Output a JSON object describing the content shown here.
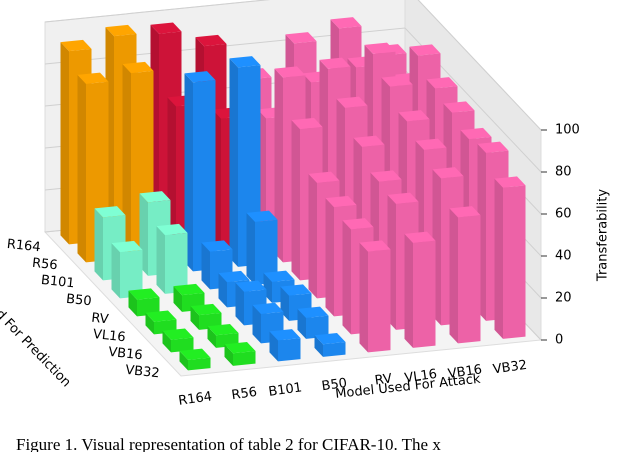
{
  "chart_data": {
    "type": "bar3d",
    "caption": "Figure 1. Visual representation of table 2 for CIFAR-10. The x",
    "xlabel": "Model Used For Attack",
    "ylabel": "Model Used For Prediction",
    "zlabel": "Transferability",
    "x_categories": [
      "R164",
      "R56",
      "B101",
      "B50",
      "RV",
      "VL16",
      "VB16",
      "VB32"
    ],
    "y_categories": [
      "R164",
      "R56",
      "B101",
      "B50",
      "RV",
      "VL16",
      "VB16",
      "VB32"
    ],
    "zlim": [
      0,
      100
    ],
    "zticks": [
      0,
      20,
      40,
      60,
      80,
      100
    ],
    "grid": true,
    "values": [
      [
        92,
        85,
        30,
        22,
        8,
        6,
        6,
        5
      ],
      [
        97,
        88,
        35,
        28,
        8,
        7,
        6,
        6
      ],
      [
        96,
        70,
        90,
        18,
        12,
        16,
        14,
        10
      ],
      [
        88,
        62,
        95,
        30,
        10,
        12,
        10,
        6
      ],
      [
        70,
        60,
        88,
        72,
        55,
        52,
        50,
        48
      ],
      [
        85,
        75,
        90,
        80,
        70,
        62,
        60,
        50
      ],
      [
        90,
        80,
        95,
        88,
        80,
        75,
        70,
        60
      ],
      [
        75,
        70,
        92,
        85,
        82,
        78,
        80,
        72
      ]
    ],
    "colors": [
      [
        "#ffa500",
        "#ffa500",
        "#7fffd4",
        "#7fffd4",
        "#22ee22",
        "#22ee22",
        "#22ee22",
        "#22ee22"
      ],
      [
        "#ffa500",
        "#ffa500",
        "#7fffd4",
        "#7fffd4",
        "#22ee22",
        "#22ee22",
        "#22ee22",
        "#22ee22"
      ],
      [
        "#dc143c",
        "#dc143c",
        "#1e90ff",
        "#1e90ff",
        "#1e90ff",
        "#1e90ff",
        "#1e90ff",
        "#1e90ff"
      ],
      [
        "#dc143c",
        "#dc143c",
        "#1e90ff",
        "#1e90ff",
        "#1e90ff",
        "#1e90ff",
        "#1e90ff",
        "#1e90ff"
      ],
      [
        "#ff69b4",
        "#ff69b4",
        "#ff69b4",
        "#ff69b4",
        "#ff69b4",
        "#ff69b4",
        "#ff69b4",
        "#ff69b4"
      ],
      [
        "#ff69b4",
        "#ff69b4",
        "#ff69b4",
        "#ff69b4",
        "#ff69b4",
        "#ff69b4",
        "#ff69b4",
        "#ff69b4"
      ],
      [
        "#ff69b4",
        "#ff69b4",
        "#ff69b4",
        "#ff69b4",
        "#ff69b4",
        "#ff69b4",
        "#ff69b4",
        "#ff69b4"
      ],
      [
        "#ff69b4",
        "#ff69b4",
        "#ff69b4",
        "#ff69b4",
        "#ff69b4",
        "#ff69b4",
        "#ff69b4",
        "#ff69b4"
      ]
    ]
  }
}
